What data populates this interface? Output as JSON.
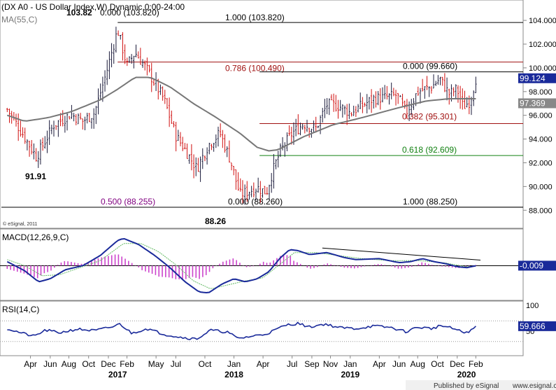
{
  "title": "(DX A0 - US Dollar Index,W) Dynamic,0:00-24:00",
  "footer": {
    "published": "Published by eSignal",
    "site": "www.esignal.com"
  },
  "copyright": "© eSignal, 2011",
  "colors": {
    "up": "#1a1a3a",
    "down": "#d01010",
    "ma": "#777777",
    "macd": "#1a2a9a",
    "signal": "#66bb66",
    "hist": "#cc44cc",
    "rsi": "#1a2a9a",
    "fib_red": "#a01010",
    "fib_green": "#108010",
    "fib_purple": "#800080"
  },
  "chart_data": [
    {
      "panel": "price",
      "type": "candlestick",
      "indicator_label": "MA(55,C)",
      "ylim": [
        86.6,
        105.6
      ],
      "y_ticks": [
        88,
        90,
        92,
        94,
        96,
        98,
        100,
        102,
        104
      ],
      "y_tick_labels": [
        "88.000",
        "90.000",
        "92.000",
        "94.000",
        "96.000",
        "98.000",
        "100.000",
        "102.000",
        "104.000"
      ],
      "last_price_label": "99.124",
      "last_price": 99.124,
      "ma_label": "97.369",
      "ma_value": 97.369,
      "close_path": [
        [
          2016.05,
          96.5
        ],
        [
          2016.18,
          94.5
        ],
        [
          2016.3,
          92.5
        ],
        [
          2016.38,
          93.9
        ],
        [
          2016.45,
          95.2
        ],
        [
          2016.6,
          96.1
        ],
        [
          2016.7,
          95.5
        ],
        [
          2016.8,
          96.2
        ],
        [
          2016.9,
          99.5
        ],
        [
          2016.98,
          102.5
        ],
        [
          2017.0,
          103.2
        ],
        [
          2017.08,
          100.2
        ],
        [
          2017.15,
          101.3
        ],
        [
          2017.25,
          99.9
        ],
        [
          2017.4,
          97.3
        ],
        [
          2017.5,
          94.3
        ],
        [
          2017.58,
          93.1
        ],
        [
          2017.68,
          91.5
        ],
        [
          2017.78,
          93.5
        ],
        [
          2017.88,
          94.5
        ],
        [
          2017.97,
          92.2
        ],
        [
          2018.05,
          89.3
        ],
        [
          2018.2,
          89.9
        ],
        [
          2018.28,
          89.5
        ],
        [
          2018.33,
          91.2
        ],
        [
          2018.4,
          93.0
        ],
        [
          2018.5,
          94.5
        ],
        [
          2018.6,
          95.3
        ],
        [
          2018.7,
          94.8
        ],
        [
          2018.8,
          96.9
        ],
        [
          2018.9,
          96.8
        ],
        [
          2019.0,
          96.2
        ],
        [
          2019.1,
          96.8
        ],
        [
          2019.2,
          97.4
        ],
        [
          2019.3,
          97.5
        ],
        [
          2019.4,
          97.7
        ],
        [
          2019.48,
          96.2
        ],
        [
          2019.58,
          98.0
        ],
        [
          2019.7,
          98.4
        ],
        [
          2019.77,
          99.1
        ],
        [
          2019.85,
          97.8
        ],
        [
          2019.92,
          98.2
        ],
        [
          2019.97,
          96.7
        ],
        [
          2020.03,
          97.2
        ],
        [
          2020.08,
          99.1
        ]
      ],
      "ma_path": [
        [
          2016.05,
          96.0
        ],
        [
          2016.2,
          95.5
        ],
        [
          2016.4,
          95.8
        ],
        [
          2016.6,
          96.3
        ],
        [
          2016.85,
          97.3
        ],
        [
          2017.0,
          98.2
        ],
        [
          2017.15,
          99.2
        ],
        [
          2017.28,
          99.2
        ],
        [
          2017.45,
          98.4
        ],
        [
          2017.65,
          97.0
        ],
        [
          2017.85,
          95.8
        ],
        [
          2018.05,
          94.5
        ],
        [
          2018.2,
          93.3
        ],
        [
          2018.3,
          93.0
        ],
        [
          2018.38,
          93.1
        ],
        [
          2018.6,
          94.2
        ],
        [
          2018.85,
          95.2
        ],
        [
          2019.1,
          95.8
        ],
        [
          2019.4,
          96.6
        ],
        [
          2019.65,
          97.2
        ],
        [
          2019.85,
          97.4
        ],
        [
          2020.08,
          97.4
        ]
      ],
      "fib_levels": [
        {
          "label": "1.000 (103.820)",
          "value": 103.82,
          "color": "#000000"
        },
        {
          "label": "0.786 (100.490)",
          "value": 100.49,
          "color": "#a01010"
        },
        {
          "label": "0.000 (99.660)",
          "value": 99.66,
          "color": "#000000"
        },
        {
          "label": "0.382 (95.301)",
          "value": 95.301,
          "color": "#a01010"
        },
        {
          "label": "0.618 (92.609)",
          "value": 92.609,
          "color": "#108010"
        },
        {
          "label": "0.000 (88.260)",
          "value": 88.26,
          "color": "#000000"
        },
        {
          "label": "0.500 (88.255)",
          "value": 88.255,
          "color": "#800080"
        },
        {
          "label": "1.000 (88.250)",
          "value": 88.25,
          "color": "#000000"
        }
      ],
      "annotations": [
        {
          "label": "103.82",
          "x": 2016.98,
          "y": 103.82
        },
        {
          "label": "0.000 (103.820)",
          "x": 2017.0,
          "y": 103.82
        },
        {
          "label": "91.91",
          "x": 2016.3,
          "y": 91.91
        },
        {
          "label": "88.26",
          "x": 2018.05,
          "y": 88.26
        }
      ]
    },
    {
      "panel": "macd",
      "type": "line",
      "label": "MACD(12,26,9,C)",
      "last_value_label": "-0.009",
      "last_value": -0.009,
      "ylim": [
        -3.3,
        3.5
      ],
      "macd_path": [
        [
          2016.05,
          0.4
        ],
        [
          2016.2,
          -0.5
        ],
        [
          2016.32,
          -1.6
        ],
        [
          2016.42,
          -1.3
        ],
        [
          2016.55,
          -0.4
        ],
        [
          2016.7,
          0.0
        ],
        [
          2016.85,
          1.0
        ],
        [
          2017.0,
          2.5
        ],
        [
          2017.05,
          2.7
        ],
        [
          2017.18,
          2.1
        ],
        [
          2017.32,
          1.0
        ],
        [
          2017.45,
          -0.2
        ],
        [
          2017.58,
          -1.6
        ],
        [
          2017.7,
          -2.6
        ],
        [
          2017.78,
          -2.7
        ],
        [
          2017.9,
          -1.8
        ],
        [
          2018.0,
          -1.3
        ],
        [
          2018.1,
          -1.6
        ],
        [
          2018.2,
          -1.3
        ],
        [
          2018.3,
          -0.6
        ],
        [
          2018.4,
          0.8
        ],
        [
          2018.48,
          1.6
        ],
        [
          2018.55,
          1.5
        ],
        [
          2018.65,
          1.1
        ],
        [
          2018.8,
          1.3
        ],
        [
          2018.95,
          0.8
        ],
        [
          2019.05,
          0.6
        ],
        [
          2019.25,
          0.7
        ],
        [
          2019.42,
          0.3
        ],
        [
          2019.52,
          0.4
        ],
        [
          2019.62,
          0.7
        ],
        [
          2019.72,
          0.4
        ],
        [
          2019.82,
          0.2
        ],
        [
          2019.92,
          -0.1
        ],
        [
          2020.0,
          -0.2
        ],
        [
          2020.08,
          -0.009
        ]
      ],
      "signal_path": [
        [
          2016.05,
          0.6
        ],
        [
          2016.2,
          0.0
        ],
        [
          2016.35,
          -1.0
        ],
        [
          2016.5,
          -0.9
        ],
        [
          2016.65,
          -0.3
        ],
        [
          2016.85,
          0.5
        ],
        [
          2017.05,
          2.2
        ],
        [
          2017.2,
          2.2
        ],
        [
          2017.35,
          1.4
        ],
        [
          2017.5,
          0.1
        ],
        [
          2017.65,
          -1.5
        ],
        [
          2017.8,
          -2.3
        ],
        [
          2017.95,
          -1.9
        ],
        [
          2018.1,
          -1.5
        ],
        [
          2018.25,
          -1.2
        ],
        [
          2018.38,
          0.0
        ],
        [
          2018.52,
          1.3
        ],
        [
          2018.7,
          1.3
        ],
        [
          2018.9,
          1.0
        ],
        [
          2019.1,
          0.7
        ],
        [
          2019.35,
          0.5
        ],
        [
          2019.6,
          0.5
        ],
        [
          2019.8,
          0.3
        ],
        [
          2020.0,
          -0.1
        ],
        [
          2020.08,
          -0.05
        ]
      ],
      "trendline": [
        [
          2018.76,
          1.75
        ],
        [
          2020.12,
          0.55
        ]
      ]
    },
    {
      "panel": "rsi",
      "type": "line",
      "label": "RSI(14,C)",
      "last_value_label": "59.666",
      "last_value": 59.666,
      "ylim": [
        0,
        100
      ],
      "y_tick_labels": [
        "100",
        "50"
      ],
      "rsi_path": [
        [
          2016.05,
          55
        ],
        [
          2016.15,
          48
        ],
        [
          2016.28,
          40
        ],
        [
          2016.38,
          52
        ],
        [
          2016.5,
          47
        ],
        [
          2016.65,
          54
        ],
        [
          2016.8,
          51
        ],
        [
          2016.95,
          58
        ],
        [
          2017.02,
          64
        ],
        [
          2017.12,
          46
        ],
        [
          2017.25,
          55
        ],
        [
          2017.4,
          44
        ],
        [
          2017.55,
          38
        ],
        [
          2017.68,
          35
        ],
        [
          2017.8,
          52
        ],
        [
          2017.95,
          48
        ],
        [
          2018.03,
          36
        ],
        [
          2018.15,
          40
        ],
        [
          2018.28,
          45
        ],
        [
          2018.35,
          52
        ],
        [
          2018.45,
          62
        ],
        [
          2018.55,
          65
        ],
        [
          2018.65,
          58
        ],
        [
          2018.78,
          64
        ],
        [
          2018.9,
          57
        ],
        [
          2019.05,
          55
        ],
        [
          2019.2,
          60
        ],
        [
          2019.35,
          57
        ],
        [
          2019.48,
          49
        ],
        [
          2019.58,
          58
        ],
        [
          2019.7,
          55
        ],
        [
          2019.78,
          61
        ],
        [
          2019.9,
          54
        ],
        [
          2019.98,
          47
        ],
        [
          2020.05,
          52
        ],
        [
          2020.08,
          59.666
        ]
      ]
    }
  ],
  "x_axis": {
    "range": [
      2016.0,
      2020.15
    ],
    "months": [
      {
        "label": "Apr",
        "x": 2016.25
      },
      {
        "label": "Jun",
        "x": 2016.42
      },
      {
        "label": "Aug",
        "x": 2016.58
      },
      {
        "label": "Oct",
        "x": 2016.75
      },
      {
        "label": "Dec",
        "x": 2016.92
      },
      {
        "label": "Feb",
        "x": 2017.08
      },
      {
        "label": "May",
        "x": 2017.33
      },
      {
        "label": "Jul",
        "x": 2017.5
      },
      {
        "label": "Oct",
        "x": 2017.75
      },
      {
        "label": "Jan",
        "x": 2018.0
      },
      {
        "label": "Apr",
        "x": 2018.25
      },
      {
        "label": "Jul",
        "x": 2018.5
      },
      {
        "label": "Sep",
        "x": 2018.67
      },
      {
        "label": "Nov",
        "x": 2018.83
      },
      {
        "label": "Jan",
        "x": 2019.0
      },
      {
        "label": "Apr",
        "x": 2019.25
      },
      {
        "label": "Jun",
        "x": 2019.42
      },
      {
        "label": "Aug",
        "x": 2019.58
      },
      {
        "label": "Oct",
        "x": 2019.75
      },
      {
        "label": "Dec",
        "x": 2019.92
      },
      {
        "label": "Feb",
        "x": 2020.08
      }
    ],
    "years": [
      {
        "label": "2017",
        "x": 2017.0
      },
      {
        "label": "2018",
        "x": 2018.0
      },
      {
        "label": "2019",
        "x": 2019.0
      },
      {
        "label": "2020",
        "x": 2020.0
      }
    ]
  }
}
